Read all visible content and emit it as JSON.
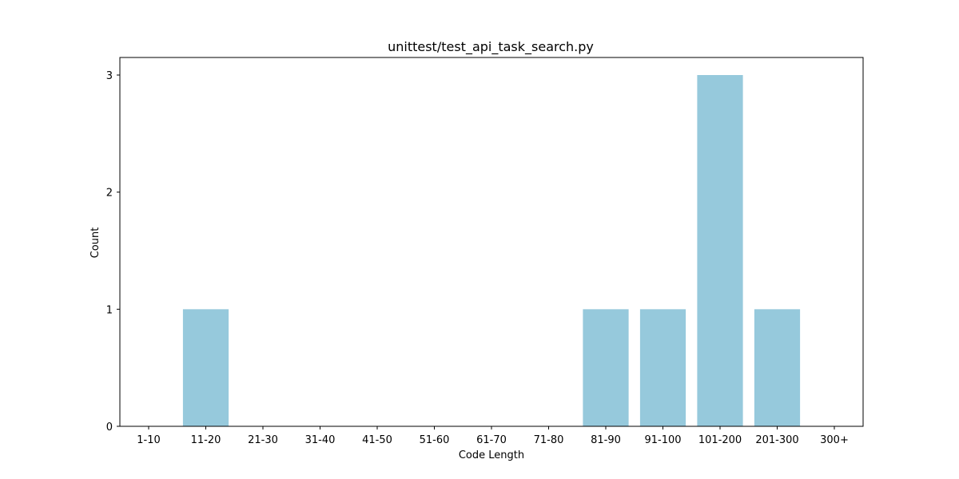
{
  "chart_data": {
    "type": "bar",
    "title": "unittest/test_api_task_search.py",
    "xlabel": "Code Length",
    "ylabel": "Count",
    "categories": [
      "1-10",
      "11-20",
      "21-30",
      "31-40",
      "41-50",
      "51-60",
      "61-70",
      "71-80",
      "81-90",
      "91-100",
      "101-200",
      "201-300",
      "300+"
    ],
    "values": [
      0,
      1,
      0,
      0,
      0,
      0,
      0,
      0,
      1,
      1,
      3,
      1,
      0
    ],
    "ylim": [
      0,
      3.15
    ],
    "yticks": [
      0,
      1,
      2,
      3
    ],
    "grid": false,
    "legend": "none",
    "bar_color": "#96c9dc"
  }
}
